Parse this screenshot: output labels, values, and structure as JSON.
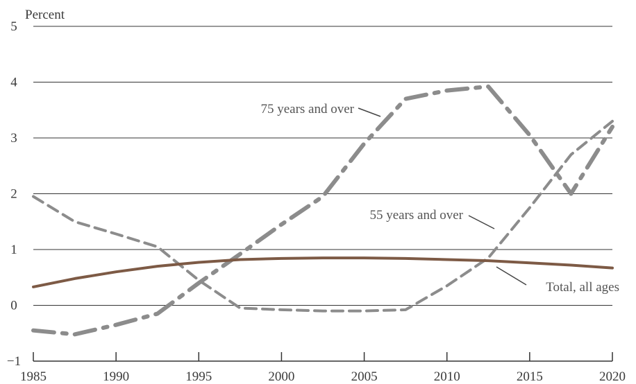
{
  "chart_data": {
    "type": "line",
    "ylabel": "Percent",
    "xlim": [
      1985,
      2020
    ],
    "ylim": [
      -1,
      5
    ],
    "xticks": [
      1985,
      1990,
      1995,
      2000,
      2005,
      2010,
      2015,
      2020
    ],
    "yticks": [
      -1,
      0,
      1,
      2,
      3,
      4,
      5
    ],
    "grid": "horizontal",
    "colors": {
      "gray": "#8c8c8c",
      "orange": "#e08a2c",
      "brown": "#7d5a45",
      "grid": "#333333"
    },
    "series": [
      {
        "name": "Total, all ages",
        "style": "solid",
        "x": [
          1985,
          1987.5,
          1990,
          1992.5,
          1995,
          1997.5,
          2000,
          2002.5,
          2005,
          2007.5,
          2010,
          2012.5,
          2015,
          2017.5,
          2020
        ],
        "y": [
          0.33,
          0.48,
          0.6,
          0.7,
          0.77,
          0.82,
          0.84,
          0.85,
          0.85,
          0.84,
          0.82,
          0.8,
          0.76,
          0.72,
          0.67
        ]
      },
      {
        "name": "55 years and over",
        "style": "dashed",
        "x": [
          1985,
          1987.5,
          1990,
          1992.5,
          1995,
          1997.5,
          2000,
          2002.5,
          2005,
          2007.5,
          2010,
          2012.5,
          2015,
          2017.5,
          2020
        ],
        "y": [
          1.95,
          1.5,
          1.28,
          1.05,
          0.45,
          -0.05,
          -0.08,
          -0.1,
          -0.1,
          -0.08,
          0.35,
          0.85,
          1.75,
          2.7,
          3.3
        ]
      },
      {
        "name": "75 years and over",
        "style": "dashdot",
        "x": [
          1985,
          1987.5,
          1990,
          1992.5,
          1995,
          1997.5,
          2000,
          2002.5,
          2005,
          2007.5,
          2010,
          2012.5,
          2015,
          2017.5,
          2020
        ],
        "y": [
          -0.45,
          -0.52,
          -0.35,
          -0.15,
          0.4,
          0.92,
          1.45,
          1.95,
          2.9,
          3.7,
          3.85,
          3.92,
          3.05,
          2.0,
          3.2
        ]
      }
    ]
  }
}
